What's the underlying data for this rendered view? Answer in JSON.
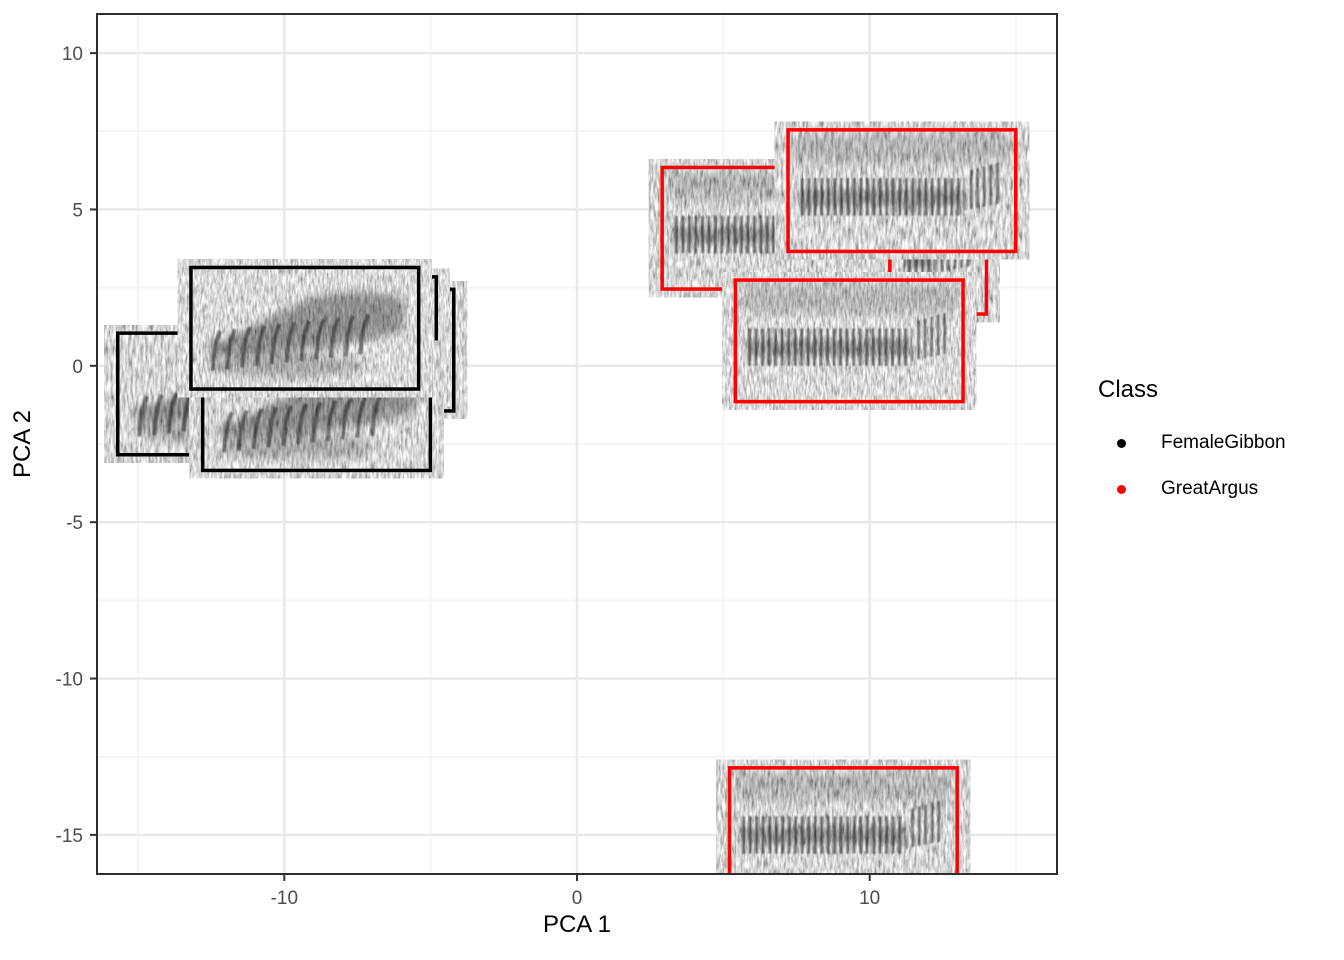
{
  "chart_data": {
    "type": "scatter",
    "title": "",
    "xlabel": "PCA 1",
    "ylabel": "PCA 2",
    "xlim": [
      -16.4,
      16.4
    ],
    "ylim": [
      -16.25,
      11.25
    ],
    "x_ticks": [
      -10,
      0,
      10
    ],
    "y_ticks": [
      10,
      5,
      0,
      -5,
      -10,
      -15
    ],
    "x_minor_gridlines": [
      -15,
      -5,
      5,
      15
    ],
    "y_minor_gridlines": [
      7.5,
      2.5,
      -2.5,
      -7.5,
      -12.5
    ],
    "grid": "on",
    "legend_position": "right",
    "marker_type": "spectrogram_thumbnail",
    "thumbnail_size_data_units": {
      "width": 7.9,
      "height": 4.0
    },
    "legend": {
      "title": "Class",
      "entries": [
        {
          "label": "FemaleGibbon",
          "color": "#000000"
        },
        {
          "label": "GreatArgus",
          "color": "#FF0000"
        }
      ]
    },
    "series": [
      {
        "name": "FemaleGibbon",
        "color": "#000000",
        "pattern": "gibbon",
        "points": [
          {
            "x": -8.1,
            "y": 0.5
          },
          {
            "x": -8.7,
            "y": 0.9
          },
          {
            "x": -11.8,
            "y": -0.9
          },
          {
            "x": -8.9,
            "y": -1.4
          },
          {
            "x": -9.3,
            "y": 1.2
          }
        ]
      },
      {
        "name": "GreatArgus",
        "color": "#FF0000",
        "pattern": "argus",
        "points": [
          {
            "x": 10.1,
            "y": 3.6
          },
          {
            "x": 6.8,
            "y": 4.4
          },
          {
            "x": 9.3,
            "y": 0.8
          },
          {
            "x": 11.1,
            "y": 5.6
          },
          {
            "x": 9.1,
            "y": -14.8
          }
        ]
      }
    ]
  },
  "style_colors": {
    "grid_major": "#E9E9E9",
    "grid_minor": "#F4F4F4",
    "panel_border": "#2E2E2E",
    "tick_mark": "#333333",
    "tick_label": "#4D4D4D",
    "axis_title": "#000000"
  }
}
